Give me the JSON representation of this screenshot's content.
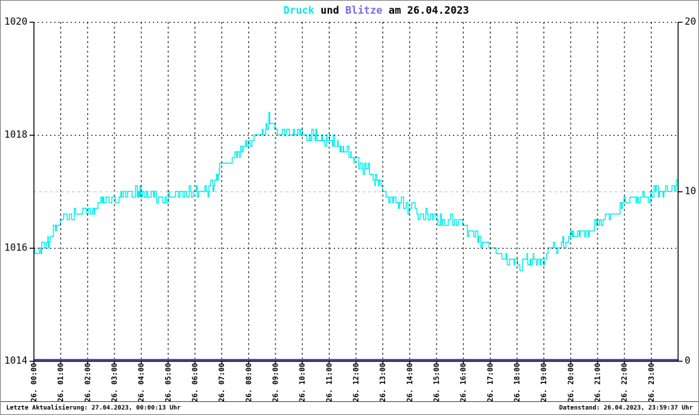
{
  "title": {
    "part_druck": "Druck",
    "part_und": " und ",
    "part_blitze": "Blitze",
    "part_date": " am 26.04.2023",
    "druck_color": "#00EDED",
    "blitze_color": "#7B68EE",
    "text_color": "#000000"
  },
  "status_bar": {
    "left": "Letzte Aktualisierung: 27.04.2023, 00:00:13 Uhr",
    "right": "Datenstand: 26.04.2023, 23:59:37 Uhr"
  },
  "chart_data": {
    "type": "line",
    "title": "Druck und Blitze am 26.04.2023",
    "x_axis": {
      "unit": "hour",
      "range_hours": [
        0,
        24
      ],
      "tick_labels": [
        "26. 00:00",
        "26. 01:00",
        "26. 02:00",
        "26. 03:00",
        "26. 04:00",
        "26. 05:00",
        "26. 06:00",
        "26. 07:00",
        "26. 08:00",
        "26. 09:00",
        "26. 10:00",
        "26. 11:00",
        "26. 12:00",
        "26. 13:00",
        "26. 14:00",
        "26. 15:00",
        "26. 16:00",
        "26. 17:00",
        "26. 18:00",
        "26. 19:00",
        "26. 20:00",
        "26. 21:00",
        "26. 22:00",
        "26. 23:00"
      ]
    },
    "left_axis": {
      "name": "Druck",
      "unit": "hPa",
      "ylim": [
        1014,
        1020
      ],
      "ticks": [
        1014,
        1016,
        1018,
        1020
      ],
      "grid_values": [
        1016,
        1018,
        1020
      ]
    },
    "right_axis": {
      "name": "Blitze",
      "ylim": [
        0,
        20
      ],
      "ticks": [
        0,
        10,
        20
      ],
      "grid_values": [
        10
      ]
    },
    "grid": {
      "vertical_dash_color": "#000000",
      "horizontal_dot_color": "#000000",
      "right_grid_dash_color": "#C9C9C9",
      "axis_color": "#000000"
    },
    "series": [
      {
        "name": "Druck",
        "axis": "left",
        "color": "#00EDED",
        "style": "noisy-step",
        "quantize_hpa": 0.1,
        "noise_hpa": 0.15,
        "x_hours": [
          0,
          0.1,
          0.3,
          0.5,
          0.7,
          1,
          1.5,
          2,
          2.5,
          3,
          3.5,
          4,
          4.5,
          5,
          5.5,
          6,
          6.3,
          6.7,
          7,
          7.5,
          8,
          8.3,
          8.6,
          8.75,
          9,
          9.5,
          10,
          10.5,
          11,
          11.3,
          11.6,
          12,
          12.3,
          12.6,
          13,
          13.5,
          14,
          14.5,
          15,
          15.5,
          16,
          16.3,
          16.6,
          17,
          17.3,
          17.6,
          17.9,
          18.3,
          18.7,
          19,
          19.3,
          19.7,
          20,
          20.4,
          20.8,
          21,
          21.4,
          21.8,
          22,
          22.4,
          22.8,
          23,
          23.4,
          23.8,
          24
        ],
        "values": [
          1016.05,
          1015.9,
          1015.95,
          1016.05,
          1016.25,
          1016.45,
          1016.55,
          1016.65,
          1016.8,
          1016.9,
          1016.95,
          1016.95,
          1016.9,
          1016.9,
          1016.95,
          1017.0,
          1016.95,
          1017.15,
          1017.45,
          1017.6,
          1017.85,
          1018.0,
          1018.1,
          1018.25,
          1018.1,
          1018.05,
          1018.0,
          1018.0,
          1017.95,
          1017.85,
          1017.75,
          1017.6,
          1017.45,
          1017.3,
          1017.05,
          1016.85,
          1016.75,
          1016.6,
          1016.5,
          1016.45,
          1016.4,
          1016.3,
          1016.15,
          1016.0,
          1015.9,
          1015.8,
          1015.72,
          1015.75,
          1015.73,
          1015.82,
          1015.95,
          1016.05,
          1016.18,
          1016.3,
          1016.3,
          1016.45,
          1016.55,
          1016.72,
          1016.85,
          1016.85,
          1016.9,
          1016.95,
          1017.0,
          1017.05,
          1017.15
        ]
      },
      {
        "name": "Blitze",
        "axis": "right",
        "color": "#3A3AA0",
        "style": "flat-line",
        "x_hours": [
          0,
          24
        ],
        "values": [
          0,
          0
        ]
      }
    ]
  }
}
